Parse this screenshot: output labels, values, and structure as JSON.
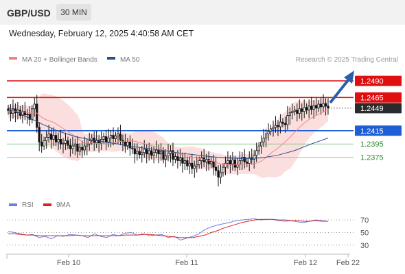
{
  "header": {
    "pair": "GBP/USD",
    "timeframe": "30 MIN",
    "datetime": "Wednesday, February 12, 2025 4:40:58 AM CET"
  },
  "legend": {
    "top": [
      {
        "label": "MA 20 + Bollinger Bands",
        "color": "#f08080"
      },
      {
        "label": "MA 50",
        "color": "#2b4e8c"
      }
    ],
    "credit": "Research © 2025 Trading Central",
    "bottom": [
      {
        "label": "RSI",
        "color": "#6a7fe0"
      },
      {
        "label": "9MA",
        "color": "#e02020"
      }
    ]
  },
  "chart_data": {
    "type": "candlestick",
    "price_ylim": [
      1.2322,
      1.2521
    ],
    "levels": [
      {
        "value": 1.249,
        "label": "1.2490",
        "color": "#e01010",
        "style": "solid"
      },
      {
        "value": 1.2465,
        "label": "1.2465",
        "color": "#e01010",
        "style": "solid"
      },
      {
        "value": 1.2449,
        "label": "1.2449",
        "color": "#333333",
        "style": "dotted"
      },
      {
        "value": 1.2415,
        "label": "1.2415",
        "color": "#1f5fd6",
        "style": "solid"
      },
      {
        "value": 1.2395,
        "label": "1.2395",
        "color": "#8fc98f",
        "style": "thin"
      },
      {
        "value": 1.2375,
        "label": "1.2375",
        "color": "#8fc98f",
        "style": "thin"
      }
    ],
    "x_ticks": [
      "Feb 10",
      "Feb 11",
      "Feb 12",
      "Feb 22"
    ],
    "rsi_levels": [
      "70",
      "50",
      "30"
    ],
    "rsi_ylim": [
      20,
      80
    ],
    "close": [
      1.2445,
      1.2441,
      1.2448,
      1.2442,
      1.2446,
      1.2438,
      1.2444,
      1.2439,
      1.244,
      1.2432,
      1.2448,
      1.2455,
      1.242,
      1.2398,
      1.2392,
      1.24,
      1.2405,
      1.241,
      1.2402,
      1.2408,
      1.2398,
      1.2402,
      1.2395,
      1.2396,
      1.24,
      1.2393,
      1.2388,
      1.2392,
      1.2395,
      1.2384,
      1.239,
      1.2386,
      1.2392,
      1.2395,
      1.24,
      1.2404,
      1.2397,
      1.2401,
      1.2396,
      1.2402,
      1.2406,
      1.2398,
      1.2404,
      1.2408,
      1.2403,
      1.2407,
      1.241,
      1.2401,
      1.2398,
      1.2392,
      1.2398,
      1.2389,
      1.2388,
      1.238,
      1.2384,
      1.2379,
      1.2382,
      1.2387,
      1.238,
      1.2385,
      1.2378,
      1.2382,
      1.2386,
      1.238,
      1.2384,
      1.2372,
      1.2377,
      1.2381,
      1.2385,
      1.2372,
      1.2376,
      1.237,
      1.2374,
      1.2366,
      1.237,
      1.2362,
      1.2366,
      1.2358,
      1.2362,
      1.2364,
      1.237,
      1.2374,
      1.2368,
      1.2372,
      1.2365,
      1.2369,
      1.236,
      1.2355,
      1.2345,
      1.2352,
      1.236,
      1.2366,
      1.237,
      1.2365,
      1.2371,
      1.236,
      1.2364,
      1.237,
      1.2375,
      1.2368,
      1.2366,
      1.2374,
      1.2372,
      1.2378,
      1.2385,
      1.2392,
      1.2398,
      1.2404,
      1.241,
      1.2414,
      1.2418,
      1.242,
      1.2423,
      1.2421,
      1.2428,
      1.2426,
      1.2424,
      1.2438,
      1.2442,
      1.2444,
      1.2446,
      1.2441,
      1.2448,
      1.2444,
      1.245,
      1.2446,
      1.2452,
      1.2447,
      1.2453,
      1.2449,
      1.2455,
      1.2451,
      1.2456,
      1.2452,
      1.2449
    ],
    "ma50": [
      1.245,
      1.2437,
      1.2425,
      1.2414,
      1.2406,
      1.2401,
      1.2397,
      1.2393,
      1.2389,
      1.2386,
      1.2382,
      1.2379,
      1.2376,
      1.2374,
      1.2373,
      1.2374,
      1.2378,
      1.2385,
      1.2395,
      1.2404
    ],
    "rsi": [
      52,
      50,
      48,
      46,
      47,
      42,
      44,
      40,
      45,
      44,
      47,
      46,
      45,
      42,
      48,
      44,
      42,
      47,
      45,
      49,
      50,
      46,
      48,
      45,
      46,
      47,
      42,
      44,
      38,
      41,
      44,
      48,
      55,
      59,
      62,
      64,
      66,
      69,
      70,
      71,
      72,
      70,
      71,
      71,
      69,
      68,
      69,
      67,
      66,
      68,
      70,
      69,
      68
    ],
    "rsi_ma": [
      48,
      48,
      47,
      46,
      46,
      45,
      45,
      45,
      45,
      45,
      45,
      46,
      45,
      45,
      45,
      45,
      45,
      45,
      45,
      46,
      46,
      46,
      47,
      47,
      46,
      45,
      44,
      43,
      42,
      42,
      42,
      44,
      46,
      50,
      53,
      57,
      60,
      63,
      66,
      68,
      70,
      71,
      71,
      71,
      70,
      70,
      69,
      69,
      68,
      68,
      69,
      68,
      68
    ]
  }
}
